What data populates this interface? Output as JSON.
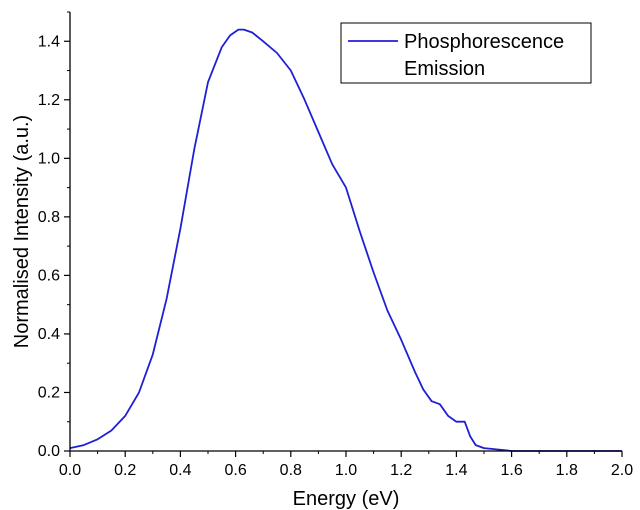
{
  "chart_data": {
    "type": "line",
    "title": "",
    "xlabel": "Energy (eV)",
    "ylabel": "Normalised Intensity (a.u.)",
    "xlim": [
      0.0,
      2.0
    ],
    "ylim": [
      0.0,
      1.5
    ],
    "x_ticks": [
      "0.0",
      "0.2",
      "0.4",
      "0.6",
      "0.8",
      "1.0",
      "1.2",
      "1.4",
      "1.6",
      "1.8",
      "2.0"
    ],
    "y_ticks": [
      "0.0",
      "0.2",
      "0.4",
      "0.6",
      "0.8",
      "1.0",
      "1.2",
      "1.4"
    ],
    "grid": false,
    "legend_position": "top-right",
    "series": [
      {
        "name": "Phosphorescence Emission",
        "color": "#1f1fd6",
        "x": [
          0.0,
          0.05,
          0.1,
          0.15,
          0.2,
          0.25,
          0.3,
          0.35,
          0.4,
          0.45,
          0.5,
          0.55,
          0.58,
          0.61,
          0.63,
          0.66,
          0.7,
          0.75,
          0.8,
          0.85,
          0.9,
          0.95,
          1.0,
          1.05,
          1.1,
          1.15,
          1.2,
          1.25,
          1.28,
          1.31,
          1.34,
          1.37,
          1.4,
          1.43,
          1.45,
          1.47,
          1.5,
          1.55,
          1.6,
          1.7,
          2.0
        ],
        "y": [
          0.01,
          0.02,
          0.04,
          0.07,
          0.12,
          0.2,
          0.33,
          0.52,
          0.76,
          1.03,
          1.26,
          1.38,
          1.42,
          1.44,
          1.44,
          1.43,
          1.4,
          1.36,
          1.3,
          1.2,
          1.09,
          0.98,
          0.9,
          0.75,
          0.61,
          0.48,
          0.38,
          0.27,
          0.21,
          0.17,
          0.16,
          0.12,
          0.1,
          0.1,
          0.05,
          0.02,
          0.01,
          0.005,
          0.0,
          0.0,
          0.0
        ]
      }
    ]
  }
}
